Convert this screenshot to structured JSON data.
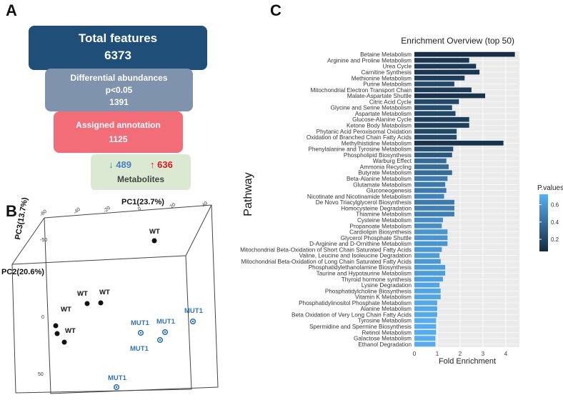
{
  "panels": {
    "a": "A",
    "b": "B",
    "c": "C"
  },
  "funnel": {
    "total": {
      "label": "Total features",
      "value": "6373",
      "color": "#1f4e79"
    },
    "differential": {
      "label": "Differential abundances",
      "threshold": "p<0.05",
      "value": "1391",
      "color": "#7f93ac"
    },
    "assigned": {
      "label": "Assigned annotation",
      "value": "1125",
      "color": "#f26d78"
    },
    "metabolites": {
      "down_arrow": "↓",
      "down": "489",
      "up_arrow": "↑",
      "up": "636",
      "label": "Metabolites",
      "color": "#dbe8d2"
    }
  },
  "pca": {
    "pc1_label": "PC1(23.7%)",
    "pc2_label": "PC2(20.6%)",
    "pc3_label": "PC3(13.7%)",
    "pc1_ticks": [
      "-60",
      "-40",
      "-20",
      "0",
      "20",
      "40"
    ],
    "pc2_ticks": [
      "-50",
      "0",
      "50"
    ],
    "groups": [
      {
        "name": "WT",
        "color": "#111111"
      },
      {
        "name": "MUT1",
        "color": "#2e75b6"
      }
    ],
    "point_labels": [
      "WT",
      "WT",
      "WT",
      "WT",
      "WT",
      "MUT1",
      "MUT1",
      "MUT1",
      "MUT1",
      "MUT1"
    ]
  },
  "chart_data": {
    "type": "bar",
    "orientation": "horizontal",
    "title": "Enrichment Overview (top 50)",
    "xlabel": "Fold Enrichment",
    "ylabel": "Pathway",
    "xlim": [
      0,
      4.6
    ],
    "xticks": [
      0,
      1,
      2,
      3,
      4
    ],
    "grid": true,
    "legend": {
      "title": "P.values",
      "ticks": [
        0.2,
        0.4,
        0.6
      ],
      "range": [
        0.06,
        0.72
      ],
      "low_color": "#132b43",
      "high_color": "#56b1f7",
      "placement": "right"
    },
    "categories": [
      "Betaine Metabolism",
      "Arginine and Proline Metabolism",
      "Urea Cycle",
      "Carnitine Synthesis",
      "Methionine Metabolism",
      "Purine Metabolism",
      "Mitochondrial Electron Transport Chain",
      "Malate-Aspartate Shuttle",
      "Citric Acid Cycle",
      "Glycine and Serine Metabolism",
      "Aspartate Metabolism",
      "Glucose-Alanine Cycle",
      "Ketone Body Metabolism",
      "Phytanic Acid Peroxisomal Oxidation",
      "Oxidation of Branched Chain Fatty Acids",
      "Methylhistidine Metabolism",
      "Phenylalanine and Tyrosine Metabolism",
      "Phospholipid Biosynthesis",
      "Warburg Effect",
      "Ammonia Recycling",
      "Butyrate Metabolism",
      "Beta-Alanine Metabolism",
      "Glutamate Metabolism",
      "Gluconeogenesis",
      "Nicotinate and Nicotinamide Metabolism",
      "De Novo Triacylglycerol Biosynthesis",
      "Homocysteine Degradation",
      "Thiamine Metabolism",
      "Cysteine Metabolism",
      "Propanoate Metabolism",
      "Cardiolipin Biosynthesis",
      "Glycerol Phosphate Shuttle",
      "D-Arginine and D-Ornithine Metabolism",
      "Mitochondrial Beta-Oxidation of Short Chain Saturated Fatty Acids",
      "Valine, Leucine and Isoleucine Degradation",
      "Mitochondrial Beta-Oxidation of Long Chain Saturated Fatty Acids",
      "Phosphatidylethanolamine Biosynthesis",
      "Taurine and Hypotaurine Metabolism",
      "Thyroid hormone synthesis",
      "Lysine Degradation",
      "Phosphatidylcholine Biosynthesis",
      "Vitamin K Metabolism",
      "Phosphatidylinositol Phosphate Metabolism",
      "Alanine Metabolism",
      "Beta Oxidation of Very Long Chain Fatty Acids",
      "Tyrosine Metabolism",
      "Spermidine and Spermine Biosynthesis",
      "Retinol Metabolism",
      "Galactose Metabolism",
      "Ethanol Degradation"
    ],
    "values": [
      4.4,
      2.4,
      2.7,
      2.85,
      2.2,
      1.75,
      2.5,
      3.1,
      1.95,
      1.65,
      1.8,
      2.4,
      2.4,
      1.85,
      1.85,
      3.9,
      1.7,
      1.65,
      1.4,
      1.5,
      1.65,
      1.45,
      1.35,
      1.4,
      1.3,
      1.75,
      1.75,
      1.75,
      1.25,
      1.2,
      1.45,
      1.45,
      1.45,
      1.2,
      1.1,
      1.15,
      1.35,
      1.35,
      1.25,
      1.1,
      1.15,
      1.15,
      1.0,
      1.0,
      1.0,
      0.95,
      0.95,
      0.95,
      0.92,
      0.92
    ],
    "pvalues": [
      0.08,
      0.12,
      0.13,
      0.12,
      0.15,
      0.2,
      0.14,
      0.1,
      0.2,
      0.22,
      0.2,
      0.15,
      0.15,
      0.2,
      0.2,
      0.1,
      0.25,
      0.28,
      0.38,
      0.38,
      0.38,
      0.45,
      0.45,
      0.45,
      0.5,
      0.45,
      0.48,
      0.48,
      0.55,
      0.55,
      0.58,
      0.58,
      0.58,
      0.6,
      0.62,
      0.6,
      0.62,
      0.62,
      0.64,
      0.66,
      0.66,
      0.66,
      0.68,
      0.68,
      0.68,
      0.7,
      0.7,
      0.7,
      0.7,
      0.7
    ]
  }
}
